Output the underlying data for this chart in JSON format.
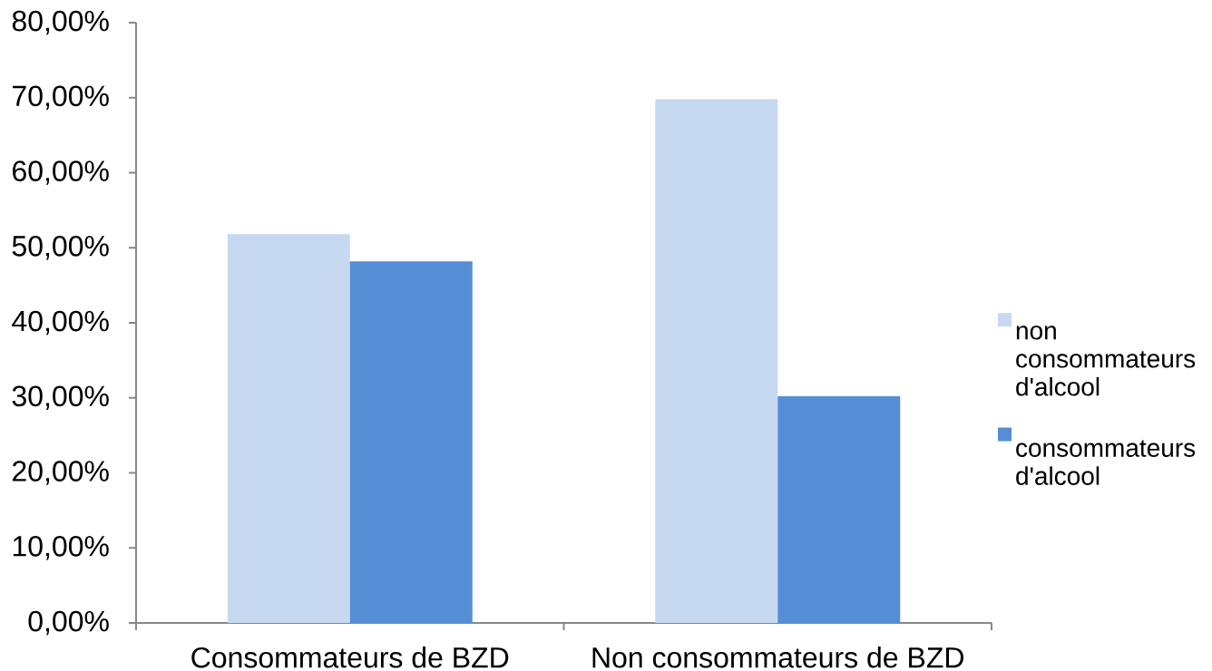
{
  "chart_data": {
    "type": "bar",
    "categories": [
      "Consommateurs de BZD",
      "Non consommateurs de BZD"
    ],
    "series": [
      {
        "name": "non consommateurs d'alcool",
        "color": "#c6d9f1",
        "values": [
          51.8,
          69.8
        ]
      },
      {
        "name": "consommateurs d'alcool",
        "color": "#558ed5",
        "values": [
          48.2,
          30.2
        ]
      }
    ],
    "ylim": [
      0,
      80
    ],
    "yticks": [
      {
        "value": 0,
        "label": "0,00%"
      },
      {
        "value": 10,
        "label": "10,00%"
      },
      {
        "value": 20,
        "label": "20,00%"
      },
      {
        "value": 30,
        "label": "30,00%"
      },
      {
        "value": 40,
        "label": "40,00%"
      },
      {
        "value": 50,
        "label": "50,00%"
      },
      {
        "value": 60,
        "label": "60,00%"
      },
      {
        "value": 70,
        "label": "70,00%"
      },
      {
        "value": 80,
        "label": "80,00%"
      }
    ],
    "legend": "right"
  }
}
